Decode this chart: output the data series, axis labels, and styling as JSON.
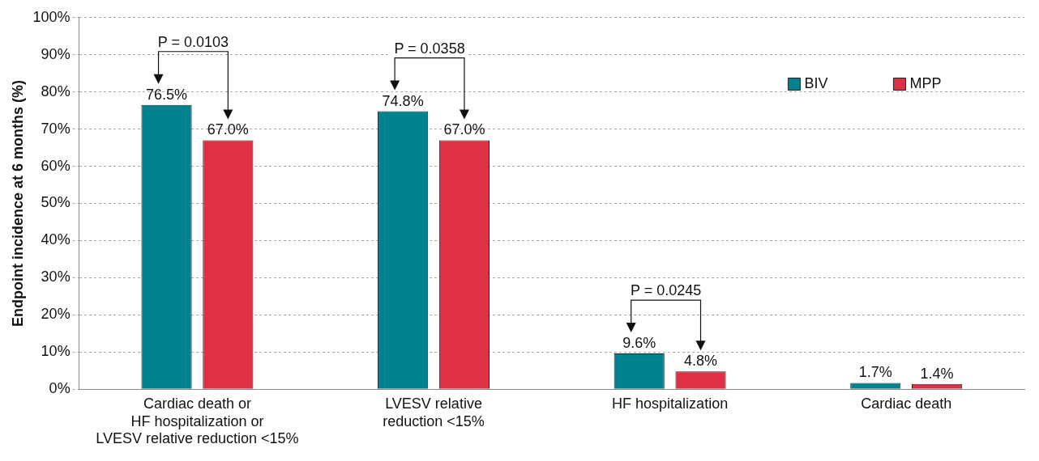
{
  "chart_data": {
    "type": "bar",
    "ylabel": "Endpoint incidence at 6 months (%)",
    "categories": [
      "Cardiac death or\nHF hospitalization or\nLVESV relative reduction <15%",
      "LVESV relative\nreduction <15%",
      "HF hospitalization",
      "Cardiac death"
    ],
    "series": [
      {
        "name": "BIV",
        "color": "#00838f",
        "values": [
          76.5,
          74.8,
          9.6,
          1.7
        ],
        "value_labels": [
          "76.5%",
          "74.8%",
          "9.6%",
          "1.7%"
        ]
      },
      {
        "name": "MPP",
        "color": "#e03045",
        "values": [
          67.0,
          67.0,
          4.8,
          1.4
        ],
        "value_labels": [
          "67.0%",
          "67.0%",
          "4.8%",
          "1.4%"
        ]
      }
    ],
    "ylim": [
      0,
      100
    ],
    "yticks": [
      {
        "value": 0,
        "label": "0%"
      },
      {
        "value": 10,
        "label": "10%"
      },
      {
        "value": 20,
        "label": "20%"
      },
      {
        "value": 30,
        "label": "30%"
      },
      {
        "value": 40,
        "label": "40%"
      },
      {
        "value": 50,
        "label": "50%"
      },
      {
        "value": 60,
        "label": "60%"
      },
      {
        "value": 70,
        "label": "70%"
      },
      {
        "value": 80,
        "label": "80%"
      },
      {
        "value": 90,
        "label": "90%"
      },
      {
        "value": 100,
        "label": "100%"
      }
    ],
    "annotations": [
      "P = 0.0103",
      "P = 0.0358",
      "P = 0.0245"
    ],
    "grid": "y",
    "legend": "right"
  }
}
